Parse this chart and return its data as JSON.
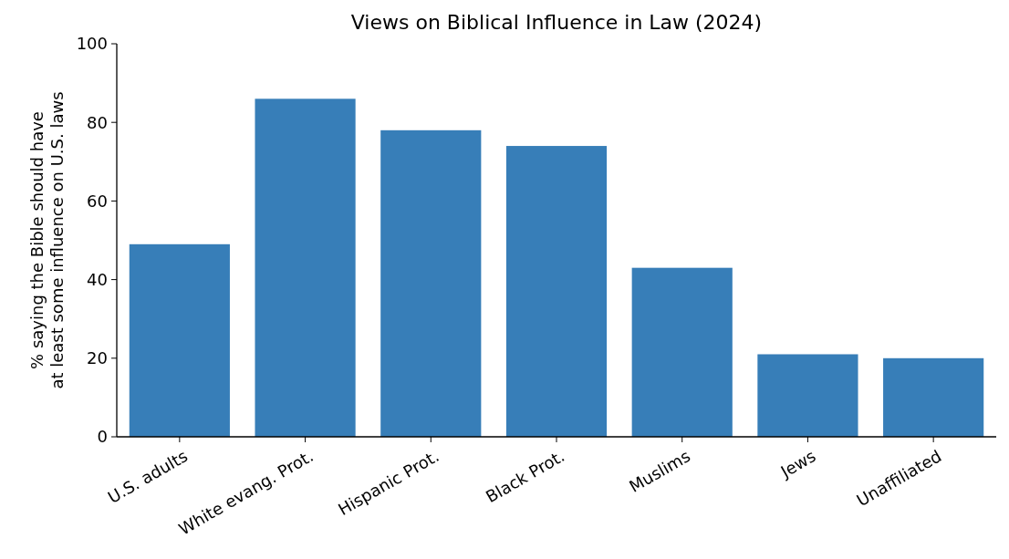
{
  "chart_data": {
    "type": "bar",
    "title": "Views on Biblical Influence in Law (2024)",
    "ylabel": "% saying the Bible should have\nat least some influence on U.S. laws",
    "categories": [
      "U.S. adults",
      "White evang. Prot.",
      "Hispanic Prot.",
      "Black Prot.",
      "Muslims",
      "Jews",
      "Unaffiliated"
    ],
    "values": [
      49,
      86,
      78,
      74,
      43,
      21,
      20
    ],
    "color": "#377eb8",
    "ylim": [
      0,
      100
    ],
    "yticks": [
      0,
      20,
      40,
      60,
      80,
      100
    ],
    "grid": false
  }
}
